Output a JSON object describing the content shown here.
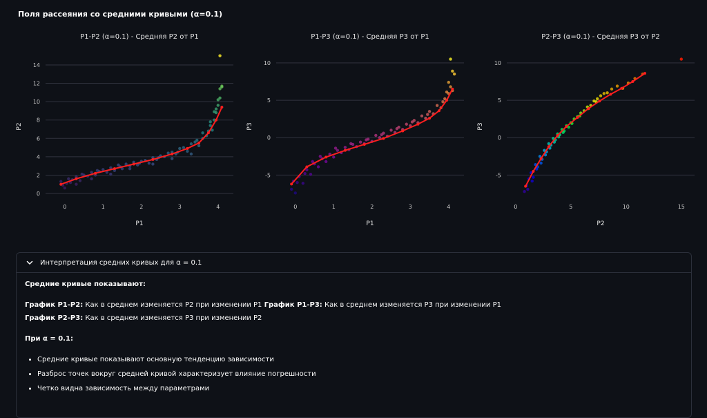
{
  "page": {
    "title": "Поля рассеяния со средними кривыми (α=0.1)"
  },
  "chart_data": [
    {
      "type": "scatter",
      "title": "P1-P2 (α=0.1) - Средняя P2 от P1",
      "xlabel": "P1",
      "ylabel": "P2",
      "xlim": [
        -0.5,
        4.4
      ],
      "ylim": [
        -0.6,
        15.2
      ],
      "xticks": [
        0,
        1,
        2,
        3,
        4
      ],
      "yticks": [
        0,
        2,
        4,
        6,
        8,
        10,
        12,
        14
      ],
      "grid": true,
      "colorscale": "viridis",
      "points_x": [
        -0.1,
        -0.05,
        0.05,
        0.1,
        0.2,
        0.3,
        0.4,
        0.5,
        0.6,
        0.7,
        0.8,
        0.9,
        1.0,
        1.1,
        1.2,
        1.3,
        1.4,
        1.5,
        1.6,
        1.7,
        1.8,
        1.9,
        2.0,
        2.1,
        2.2,
        2.3,
        2.4,
        2.5,
        2.6,
        2.7,
        2.8,
        2.9,
        3.0,
        3.1,
        3.2,
        3.3,
        3.4,
        3.5,
        3.6,
        3.7,
        3.75,
        3.8,
        3.85,
        3.9,
        3.95,
        4.0,
        4.05,
        4.1,
        0.0,
        0.3,
        0.7,
        1.2,
        1.7,
        2.3,
        2.8,
        3.3,
        3.6,
        3.9,
        4.0,
        4.05,
        4.1,
        3.95,
        3.8,
        0.15,
        0.45,
        0.85,
        1.45,
        1.95,
        2.45,
        2.95,
        3.45
      ],
      "points_y": [
        1.3,
        0.9,
        1.1,
        1.6,
        1.5,
        1.8,
        1.4,
        2.0,
        1.9,
        2.3,
        2.0,
        2.4,
        2.6,
        2.3,
        2.8,
        2.5,
        3.1,
        2.7,
        3.2,
        3.0,
        3.4,
        3.1,
        3.5,
        3.6,
        3.3,
        3.9,
        3.7,
        4.1,
        4.0,
        4.4,
        4.5,
        4.3,
        4.9,
        5.0,
        4.6,
        5.4,
        5.6,
        5.2,
        6.0,
        6.3,
        6.8,
        7.4,
        6.9,
        8.0,
        8.8,
        9.6,
        10.4,
        11.7,
        0.6,
        1.0,
        1.6,
        2.1,
        2.7,
        3.2,
        3.8,
        4.3,
        6.6,
        8.9,
        10.2,
        11.4,
        11.6,
        9.2,
        7.8,
        1.2,
        2.1,
        2.5,
        2.9,
        3.3,
        3.9,
        4.5,
        5.8
      ],
      "outliers_x": [
        4.05
      ],
      "outliers_y": [
        15.0
      ],
      "mean_x": [
        -0.1,
        0.3,
        0.8,
        1.3,
        1.8,
        2.3,
        2.8,
        3.2,
        3.5,
        3.75,
        3.95,
        4.1
      ],
      "mean_y": [
        1.0,
        1.6,
        2.2,
        2.7,
        3.2,
        3.7,
        4.3,
        4.9,
        5.5,
        6.6,
        8.0,
        9.4
      ]
    },
    {
      "type": "scatter",
      "title": "P1-P3 (α=0.1) - Средняя P3 от P1",
      "xlabel": "P1",
      "ylabel": "P3",
      "xlim": [
        -0.5,
        4.4
      ],
      "ylim": [
        -8.2,
        11.2
      ],
      "xticks": [
        0,
        1,
        2,
        3,
        4
      ],
      "yticks": [
        -5,
        0,
        5,
        10
      ],
      "grid": true,
      "colorscale": "plasma",
      "points_x": [
        -0.1,
        -0.05,
        0.0,
        0.1,
        0.2,
        0.3,
        0.4,
        0.5,
        0.6,
        0.7,
        0.8,
        0.9,
        1.0,
        1.1,
        1.2,
        1.3,
        1.4,
        1.5,
        1.6,
        1.7,
        1.8,
        1.9,
        2.0,
        2.1,
        2.2,
        2.3,
        2.4,
        2.5,
        2.6,
        2.7,
        2.8,
        2.9,
        3.0,
        3.1,
        3.2,
        3.3,
        3.4,
        3.5,
        3.6,
        3.7,
        3.8,
        3.9,
        4.0,
        4.05,
        4.1,
        0.05,
        0.25,
        0.45,
        0.65,
        1.05,
        1.45,
        1.85,
        2.25,
        2.65,
        3.05,
        3.45,
        3.85,
        4.0,
        3.95
      ],
      "points_y": [
        -6.9,
        -5.8,
        -7.4,
        -5.2,
        -6.1,
        -4.3,
        -4.9,
        -3.5,
        -3.9,
        -2.8,
        -3.2,
        -2.2,
        -2.6,
        -1.7,
        -2.0,
        -1.3,
        -1.6,
        -0.9,
        -1.2,
        -0.6,
        -0.8,
        -0.2,
        -0.5,
        0.3,
        0.0,
        0.6,
        0.2,
        1.0,
        0.7,
        1.4,
        1.1,
        1.8,
        1.6,
        2.3,
        2.0,
        2.9,
        2.6,
        3.5,
        3.2,
        4.3,
        4.0,
        5.2,
        5.9,
        6.8,
        6.3,
        -6.0,
        -4.8,
        -3.2,
        -2.5,
        -1.4,
        -0.8,
        -0.3,
        0.4,
        1.2,
        2.1,
        3.1,
        4.8,
        7.4,
        6.1
      ],
      "outliers_x": [
        4.05,
        4.1,
        4.15
      ],
      "outliers_y": [
        10.5,
        8.9,
        8.5
      ],
      "mean_x": [
        -0.1,
        0.3,
        0.8,
        1.3,
        1.8,
        2.3,
        2.8,
        3.2,
        3.5,
        3.75,
        3.95,
        4.1
      ],
      "mean_y": [
        -6.2,
        -3.9,
        -2.6,
        -1.7,
        -0.9,
        -0.1,
        0.9,
        1.8,
        2.6,
        3.6,
        5.0,
        6.5
      ]
    },
    {
      "type": "scatter",
      "title": "P2-P3 (α=0.1) - Средняя P3 от P2",
      "xlabel": "P2",
      "ylabel": "P3",
      "xlim": [
        -0.8,
        16.2
      ],
      "ylim": [
        -8.2,
        11.2
      ],
      "xticks": [
        0,
        5,
        10,
        15
      ],
      "yticks": [
        -5,
        0,
        5,
        10
      ],
      "grid": true,
      "colorscale": "rainbow",
      "points_x": [
        0.8,
        1.0,
        1.2,
        1.4,
        1.6,
        1.8,
        2.0,
        2.2,
        2.4,
        2.6,
        2.8,
        3.0,
        3.2,
        3.4,
        3.6,
        3.8,
        4.0,
        4.2,
        4.4,
        4.6,
        4.8,
        5.0,
        5.3,
        5.6,
        5.9,
        6.2,
        6.5,
        6.8,
        7.1,
        7.4,
        7.7,
        8.0,
        8.3,
        8.7,
        9.2,
        9.7,
        10.2,
        10.8,
        11.5,
        1.1,
        1.5,
        1.9,
        2.3,
        2.7,
        3.1,
        3.5,
        3.9,
        4.3,
        5.1,
        5.8,
        6.6,
        7.3
      ],
      "points_y": [
        -7.2,
        -6.4,
        -5.5,
        -4.7,
        -5.3,
        -3.6,
        -3.9,
        -2.5,
        -2.9,
        -1.7,
        -1.9,
        -0.8,
        -1.0,
        -0.1,
        -0.3,
        0.5,
        0.4,
        1.1,
        0.9,
        1.6,
        1.4,
        2.0,
        2.5,
        2.8,
        3.3,
        3.6,
        4.1,
        4.3,
        4.9,
        5.2,
        5.6,
        5.9,
        6.0,
        6.5,
        6.9,
        6.6,
        7.3,
        7.9,
        8.5,
        -6.9,
        -5.8,
        -4.2,
        -3.4,
        -2.3,
        -1.4,
        -0.6,
        0.1,
        0.7,
        1.9,
        2.9,
        3.9,
        4.8
      ],
      "outliers_x": [
        15.0
      ],
      "outliers_y": [
        10.5
      ],
      "mean_x": [
        0.9,
        1.6,
        2.3,
        3.0,
        3.8,
        4.6,
        5.6,
        6.6,
        7.6,
        8.6,
        9.6,
        10.6,
        11.7
      ],
      "mean_y": [
        -6.5,
        -4.5,
        -2.8,
        -1.2,
        0.3,
        1.5,
        2.7,
        3.9,
        4.9,
        5.8,
        6.6,
        7.5,
        8.6
      ]
    }
  ],
  "expander": {
    "label": "Интерпретация средних кривых для α = 0.1",
    "heading": "Средние кривые показывают:",
    "g1_label": "График P1-P2:",
    "g1_text": " Как в среднем изменяется P2 при изменении P1 ",
    "g2_label": "График P1-P3:",
    "g2_text": " Как в среднем изменяется P3 при изменении P1",
    "g3_label": "График P2-P3:",
    "g3_text": " Как в среднем изменяется P3 при изменении P2",
    "alpha_heading": "При α = 0.1:",
    "bullets": [
      "Средние кривые показывают основную тенденцию зависимости",
      "Разброс точек вокруг средней кривой характеризует влияние погрешности",
      "Четко видна зависимость между параметрами"
    ],
    "border_color": "#2b2f3a"
  }
}
